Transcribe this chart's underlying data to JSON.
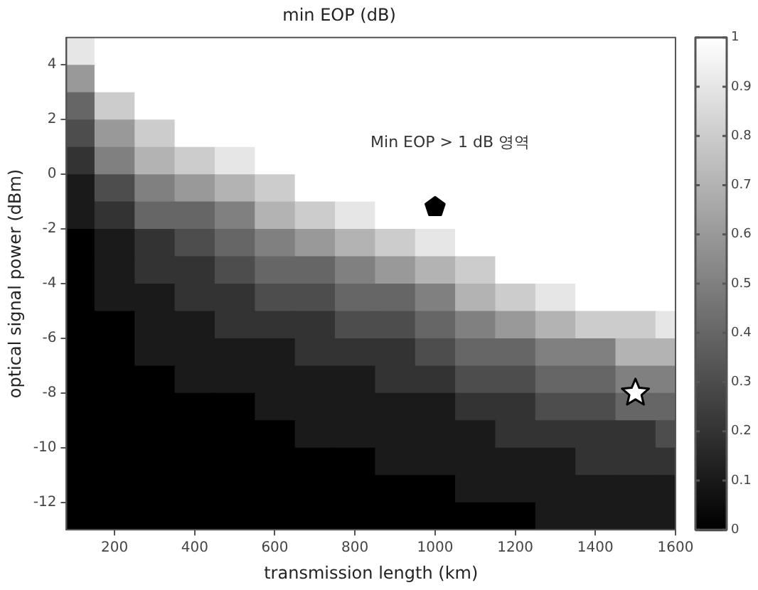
{
  "chart_data": {
    "type": "heatmap",
    "title": "min EOP (dB)",
    "xlabel": "transmission length (km)",
    "ylabel": "optical signal power (dBm)",
    "x": [
      100,
      200,
      300,
      400,
      500,
      600,
      700,
      800,
      900,
      1000,
      1100,
      1200,
      1300,
      1400,
      1500,
      1600
    ],
    "y": [
      4.5,
      3.5,
      2.5,
      1.5,
      0.5,
      -0.5,
      -1.5,
      -2.5,
      -3.5,
      -4.5,
      -5.5,
      -6.5,
      -7.5,
      -8.5,
      -9.5,
      -10.5,
      -11.5,
      -12.5
    ],
    "cells": [
      [
        0.9,
        1,
        1,
        1,
        1,
        1,
        1,
        1,
        1,
        1,
        1,
        1,
        1,
        1,
        1,
        1
      ],
      [
        0.6,
        1,
        1,
        1,
        1,
        1,
        1,
        1,
        1,
        1,
        1,
        1,
        1,
        1,
        1,
        1
      ],
      [
        0.4,
        0.8,
        1,
        1,
        1,
        1,
        1,
        1,
        1,
        1,
        1,
        1,
        1,
        1,
        1,
        1
      ],
      [
        0.3,
        0.6,
        0.8,
        1,
        1,
        1,
        1,
        1,
        1,
        1,
        1,
        1,
        1,
        1,
        1,
        1
      ],
      [
        0.2,
        0.5,
        0.7,
        0.8,
        0.9,
        1,
        1,
        1,
        1,
        1,
        1,
        1,
        1,
        1,
        1,
        1
      ],
      [
        0.1,
        0.3,
        0.5,
        0.6,
        0.7,
        0.8,
        1,
        1,
        1,
        1,
        1,
        1,
        1,
        1,
        1,
        1
      ],
      [
        0.1,
        0.2,
        0.4,
        0.4,
        0.5,
        0.7,
        0.8,
        0.9,
        1,
        1,
        1,
        1,
        1,
        1,
        1,
        1
      ],
      [
        0,
        0.1,
        0.2,
        0.3,
        0.4,
        0.5,
        0.6,
        0.7,
        0.8,
        0.9,
        1,
        1,
        1,
        1,
        1,
        1
      ],
      [
        0,
        0.1,
        0.2,
        0.2,
        0.3,
        0.4,
        0.4,
        0.5,
        0.6,
        0.7,
        0.8,
        1,
        1,
        1,
        1,
        1
      ],
      [
        0,
        0.1,
        0.1,
        0.2,
        0.2,
        0.3,
        0.3,
        0.4,
        0.4,
        0.5,
        0.7,
        0.8,
        0.9,
        1,
        1,
        1
      ],
      [
        0,
        0,
        0.1,
        0.1,
        0.2,
        0.2,
        0.2,
        0.3,
        0.3,
        0.4,
        0.5,
        0.6,
        0.7,
        0.8,
        0.8,
        0.9
      ],
      [
        0,
        0,
        0.1,
        0.1,
        0.1,
        0.1,
        0.2,
        0.2,
        0.2,
        0.3,
        0.4,
        0.4,
        0.5,
        0.5,
        0.7,
        0.7
      ],
      [
        0,
        0,
        0,
        0.1,
        0.1,
        0.1,
        0.1,
        0.1,
        0.2,
        0.2,
        0.3,
        0.3,
        0.4,
        0.4,
        0.5,
        0.5
      ],
      [
        0,
        0,
        0,
        0,
        0,
        0.1,
        0.1,
        0.1,
        0.1,
        0.1,
        0.2,
        0.2,
        0.3,
        0.3,
        0.4,
        0.4
      ],
      [
        0,
        0,
        0,
        0,
        0,
        0,
        0.1,
        0.1,
        0.1,
        0.1,
        0.1,
        0.2,
        0.2,
        0.2,
        0.2,
        0.3
      ],
      [
        0,
        0,
        0,
        0,
        0,
        0,
        0,
        0,
        0.1,
        0.1,
        0.1,
        0.1,
        0.1,
        0.2,
        0.2,
        0.2
      ],
      [
        0,
        0,
        0,
        0,
        0,
        0,
        0,
        0,
        0,
        0,
        0.1,
        0.1,
        0.1,
        0.1,
        0.1,
        0.1
      ],
      [
        0,
        0,
        0,
        0,
        0,
        0,
        0,
        0,
        0,
        0,
        0,
        0,
        0.1,
        0.1,
        0.1,
        0.1
      ]
    ],
    "xlim": [
      80,
      1600
    ],
    "xticks": [
      200,
      400,
      600,
      800,
      1000,
      1200,
      1400,
      1600
    ],
    "ylim": [
      -13,
      5
    ],
    "yticks": [
      -12,
      -10,
      -8,
      -6,
      -4,
      -2,
      0,
      2,
      4
    ],
    "clim": [
      0,
      1
    ],
    "cticks": [
      0,
      0.1,
      0.2,
      0.3,
      0.4,
      0.5,
      0.6,
      0.7,
      0.8,
      0.9,
      1
    ],
    "series": [
      {
        "type": "scatter",
        "x": [
          1000
        ],
        "values": [
          -1.2
        ],
        "color": "#000000"
      },
      {
        "type": "scatter",
        "x": [
          1500
        ],
        "values": [
          -8
        ],
        "color": "#ffffff",
        "marker": "star"
      }
    ],
    "annotations": [
      "Min EOP > 1 dB 영역"
    ]
  }
}
